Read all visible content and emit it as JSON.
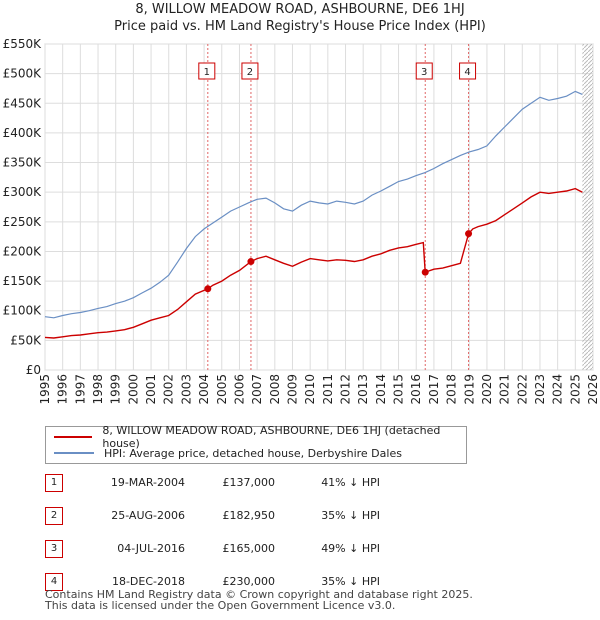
{
  "title_line1": "8, WILLOW MEADOW ROAD, ASHBOURNE, DE6 1HJ",
  "title_line2": "Price paid vs. HM Land Registry's House Price Index (HPI)",
  "colors": {
    "property": "#cc0000",
    "hpi": "#6a8fc4",
    "marker_line": "#e06666",
    "grid": "#dddddd"
  },
  "legend": {
    "property_label": "8, WILLOW MEADOW ROAD, ASHBOURNE, DE6 1HJ (detached house)",
    "hpi_label": "HPI: Average price, detached house, Derbyshire Dales"
  },
  "sales": [
    {
      "num": "1",
      "date": "19-MAR-2004",
      "price": "£137,000",
      "hpi": "41% ↓ HPI"
    },
    {
      "num": "2",
      "date": "25-AUG-2006",
      "price": "£182,950",
      "hpi": "35% ↓ HPI"
    },
    {
      "num": "3",
      "date": "04-JUL-2016",
      "price": "£165,000",
      "hpi": "49% ↓ HPI"
    },
    {
      "num": "4",
      "date": "18-DEC-2018",
      "price": "£230,000",
      "hpi": "35% ↓ HPI"
    }
  ],
  "footer_line1": "Contains HM Land Registry data © Crown copyright and database right 2025.",
  "footer_line2": "This data is licensed under the Open Government Licence v3.0.",
  "chart_data": {
    "type": "line",
    "title": "Price paid vs. HM Land Registry's House Price Index (HPI)",
    "xlabel": "",
    "ylabel": "",
    "xlim": [
      1995,
      2026
    ],
    "ylim": [
      0,
      550000
    ],
    "x_ticks": [
      "1995",
      "1996",
      "1997",
      "1998",
      "1999",
      "2000",
      "2001",
      "2002",
      "2003",
      "2004",
      "2005",
      "2006",
      "2007",
      "2008",
      "2009",
      "2010",
      "2011",
      "2012",
      "2013",
      "2014",
      "2015",
      "2016",
      "2017",
      "2018",
      "2019",
      "2020",
      "2021",
      "2022",
      "2023",
      "2024",
      "2025",
      "2026"
    ],
    "y_ticks": [
      {
        "value": 0,
        "label": "£0"
      },
      {
        "value": 50000,
        "label": "£50K"
      },
      {
        "value": 100000,
        "label": "£100K"
      },
      {
        "value": 150000,
        "label": "£150K"
      },
      {
        "value": 200000,
        "label": "£200K"
      },
      {
        "value": 250000,
        "label": "£250K"
      },
      {
        "value": 300000,
        "label": "£300K"
      },
      {
        "value": 350000,
        "label": "£350K"
      },
      {
        "value": 400000,
        "label": "£400K"
      },
      {
        "value": 450000,
        "label": "£450K"
      },
      {
        "value": 500000,
        "label": "£500K"
      },
      {
        "value": 550000,
        "label": "£550K"
      }
    ],
    "grid": true,
    "series": [
      {
        "name": "HPI: Average price, detached house, Derbyshire Dales",
        "color": "#6a8fc4",
        "x": [
          1995,
          1995.5,
          1996,
          1996.5,
          1997,
          1997.5,
          1998,
          1998.5,
          1999,
          1999.5,
          2000,
          2000.5,
          2001,
          2001.5,
          2002,
          2002.5,
          2003,
          2003.5,
          2004,
          2004.5,
          2005,
          2005.5,
          2006,
          2006.5,
          2007,
          2007.5,
          2008,
          2008.5,
          2009,
          2009.5,
          2010,
          2010.5,
          2011,
          2011.5,
          2012,
          2012.5,
          2013,
          2013.5,
          2014,
          2014.5,
          2015,
          2015.5,
          2016,
          2016.5,
          2017,
          2017.5,
          2018,
          2018.5,
          2019,
          2019.5,
          2020,
          2020.5,
          2021,
          2021.5,
          2022,
          2022.5,
          2023,
          2023.5,
          2024,
          2024.5,
          2025,
          2025.4
        ],
        "values": [
          90000,
          88000,
          92000,
          95000,
          97000,
          100000,
          104000,
          107000,
          112000,
          116000,
          122000,
          130000,
          138000,
          148000,
          160000,
          182000,
          205000,
          225000,
          238000,
          248000,
          258000,
          268000,
          275000,
          282000,
          288000,
          290000,
          282000,
          272000,
          268000,
          278000,
          285000,
          282000,
          280000,
          285000,
          283000,
          280000,
          285000,
          295000,
          302000,
          310000,
          318000,
          322000,
          328000,
          333000,
          340000,
          348000,
          355000,
          362000,
          368000,
          372000,
          378000,
          395000,
          410000,
          425000,
          440000,
          450000,
          460000,
          455000,
          458000,
          462000,
          470000,
          465000
        ]
      },
      {
        "name": "8, WILLOW MEADOW ROAD, ASHBOURNE, DE6 1HJ (detached house)",
        "color": "#cc0000",
        "x": [
          1995,
          1995.5,
          1996,
          1996.5,
          1997,
          1997.5,
          1998,
          1998.5,
          1999,
          1999.5,
          2000,
          2000.5,
          2001,
          2001.5,
          2002,
          2002.5,
          2003,
          2003.5,
          2004.21,
          2004.5,
          2005,
          2005.5,
          2006,
          2006.65,
          2007,
          2007.5,
          2008,
          2008.5,
          2009,
          2009.5,
          2010,
          2010.5,
          2011,
          2011.5,
          2012,
          2012.5,
          2013,
          2013.5,
          2014,
          2014.5,
          2015,
          2015.5,
          2016,
          2016.4,
          2016.51,
          2017,
          2017.5,
          2018,
          2018.5,
          2018.96,
          2019.2,
          2019.5,
          2020,
          2020.5,
          2021,
          2021.5,
          2022,
          2022.5,
          2023,
          2023.5,
          2024,
          2024.5,
          2025,
          2025.4
        ],
        "values": [
          55000,
          54000,
          56000,
          58000,
          59000,
          61000,
          63000,
          64000,
          66000,
          68000,
          72000,
          78000,
          84000,
          88000,
          92000,
          102000,
          115000,
          128000,
          137000,
          143000,
          150000,
          160000,
          168000,
          182950,
          188000,
          192000,
          186000,
          180000,
          175000,
          182000,
          188000,
          186000,
          184000,
          186000,
          185000,
          183000,
          186000,
          192000,
          196000,
          202000,
          206000,
          208000,
          212000,
          215000,
          165000,
          170000,
          172000,
          176000,
          180000,
          230000,
          238000,
          242000,
          246000,
          252000,
          262000,
          272000,
          282000,
          292000,
          300000,
          298000,
          300000,
          302000,
          306000,
          300000
        ]
      }
    ],
    "sales": [
      {
        "label": "1",
        "x": 2004.21,
        "value": 137000
      },
      {
        "label": "2",
        "x": 2006.65,
        "value": 182950
      },
      {
        "label": "3",
        "x": 2016.51,
        "value": 165000
      },
      {
        "label": "4",
        "x": 2018.96,
        "value": 230000
      }
    ]
  }
}
